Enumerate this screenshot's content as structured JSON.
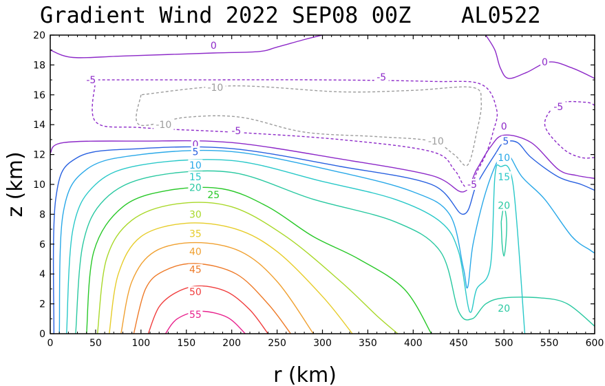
{
  "chart_data": {
    "type": "contour",
    "title": "Gradient Wind 2022 SEP08 00Z",
    "storm_id": "AL0522",
    "xlabel": "r (km)",
    "ylabel": "z (km)",
    "xlim": [
      0,
      600
    ],
    "ylim": [
      0,
      20
    ],
    "xticks": [
      "0",
      "50",
      "100",
      "150",
      "200",
      "250",
      "300",
      "350",
      "400",
      "450",
      "500",
      "550",
      "600"
    ],
    "yticks": [
      "0",
      "2",
      "4",
      "6",
      "8",
      "10",
      "12",
      "14",
      "16",
      "18",
      "20"
    ],
    "contour_interval": 5,
    "negative_style": "dashed",
    "contours": [
      {
        "level": 55,
        "color": "#e8208c",
        "dashed": false,
        "points": [
          [
            127,
            0
          ],
          [
            140,
            1.0
          ],
          [
            165,
            1.5
          ],
          [
            195,
            1.1
          ],
          [
            215,
            0
          ]
        ]
      },
      {
        "level": 50,
        "color": "#f03c3c",
        "dashed": false,
        "points": [
          [
            108,
            0
          ],
          [
            120,
            1.8
          ],
          [
            140,
            2.8
          ],
          [
            165,
            3.2
          ],
          [
            195,
            2.8
          ],
          [
            220,
            1.6
          ],
          [
            240,
            0
          ]
        ]
      },
      {
        "level": 45,
        "color": "#ee7a28",
        "dashed": false,
        "points": [
          [
            92,
            0
          ],
          [
            105,
            3.0
          ],
          [
            125,
            4.2
          ],
          [
            160,
            4.7
          ],
          [
            205,
            4.0
          ],
          [
            240,
            2.0
          ],
          [
            265,
            0
          ]
        ]
      },
      {
        "level": 40,
        "color": "#f0a030",
        "dashed": false,
        "points": [
          [
            78,
            0
          ],
          [
            90,
            3.5
          ],
          [
            115,
            5.5
          ],
          [
            160,
            6.1
          ],
          [
            210,
            5.5
          ],
          [
            250,
            3.5
          ],
          [
            290,
            0
          ]
        ]
      },
      {
        "level": 35,
        "color": "#e6cc28",
        "dashed": false,
        "points": [
          [
            65,
            0
          ],
          [
            75,
            4.0
          ],
          [
            100,
            6.5
          ],
          [
            150,
            7.4
          ],
          [
            205,
            7.0
          ],
          [
            250,
            5.5
          ],
          [
            300,
            2.5
          ],
          [
            333,
            0
          ]
        ]
      },
      {
        "level": 30,
        "color": "#a8d828",
        "dashed": false,
        "points": [
          [
            52,
            0
          ],
          [
            62,
            5.0
          ],
          [
            90,
            7.6
          ],
          [
            140,
            8.7
          ],
          [
            200,
            8.5
          ],
          [
            260,
            6.5
          ],
          [
            320,
            3.5
          ],
          [
            360,
            1.2
          ],
          [
            383,
            0
          ]
        ]
      },
      {
        "level": 25,
        "color": "#28c828",
        "dashed": false,
        "points": [
          [
            40,
            0
          ],
          [
            48,
            5.5
          ],
          [
            80,
            8.5
          ],
          [
            130,
            9.6
          ],
          [
            190,
            9.7
          ],
          [
            240,
            8.5
          ],
          [
            290,
            6.5
          ],
          [
            340,
            5.0
          ],
          [
            390,
            3.0
          ],
          [
            420,
            0
          ]
        ]
      },
      {
        "level": 20,
        "color": "#28c8a0",
        "dashed": false,
        "points": [
          [
            28,
            0
          ],
          [
            36,
            6.0
          ],
          [
            60,
            9.0
          ],
          [
            110,
            10.5
          ],
          [
            200,
            10.8
          ],
          [
            290,
            9.0
          ],
          [
            380,
            7.5
          ],
          [
            430,
            5.5
          ],
          [
            450,
            1.5
          ],
          [
            465,
            1.0
          ],
          [
            480,
            2.0
          ],
          [
            500,
            2.4
          ],
          [
            540,
            2.4
          ],
          [
            570,
            2.0
          ],
          [
            600,
            0.5
          ]
        ]
      },
      {
        "level": 20,
        "color": "#28c8a0",
        "dashed": false,
        "points": [
          [
            497,
            7.5
          ],
          [
            500,
            8.5
          ],
          [
            503,
            7.5
          ],
          [
            502,
            6.0
          ],
          [
            500,
            5.2
          ],
          [
            498,
            6.0
          ],
          [
            497,
            7.5
          ]
        ]
      },
      {
        "level": 15,
        "color": "#28c8c8",
        "dashed": false,
        "points": [
          [
            18,
            0
          ],
          [
            25,
            7.0
          ],
          [
            50,
            10.0
          ],
          [
            100,
            11.3
          ],
          [
            200,
            11.6
          ],
          [
            300,
            10.2
          ],
          [
            380,
            9.0
          ],
          [
            430,
            7.5
          ],
          [
            450,
            5.5
          ],
          [
            462,
            1.5
          ],
          [
            470,
            3.0
          ],
          [
            485,
            4.5
          ],
          [
            490,
            10.5
          ],
          [
            496,
            11.2
          ],
          [
            510,
            10.0
          ],
          [
            523,
            0
          ]
        ]
      },
      {
        "level": 10,
        "color": "#28a8e8",
        "dashed": false,
        "points": [
          [
            10,
            0
          ],
          [
            14,
            8.0
          ],
          [
            40,
            11.0
          ],
          [
            100,
            12.0
          ],
          [
            200,
            12.2
          ],
          [
            320,
            10.8
          ],
          [
            400,
            9.5
          ],
          [
            440,
            8.0
          ],
          [
            455,
            4.5
          ],
          [
            460,
            3.1
          ],
          [
            466,
            6.0
          ],
          [
            480,
            9.5
          ],
          [
            495,
            11.8
          ],
          [
            505,
            12.0
          ],
          [
            520,
            10.5
          ],
          [
            545,
            9.0
          ],
          [
            575,
            6.5
          ],
          [
            595,
            5.6
          ],
          [
            600,
            5.4
          ]
        ]
      },
      {
        "level": 5,
        "color": "#2860e0",
        "dashed": false,
        "points": [
          [
            4,
            0
          ],
          [
            6,
            9.0
          ],
          [
            30,
            11.8
          ],
          [
            100,
            12.4
          ],
          [
            200,
            12.4
          ],
          [
            320,
            11.2
          ],
          [
            420,
            10.0
          ],
          [
            455,
            8.0
          ],
          [
            470,
            10.0
          ],
          [
            490,
            12.0
          ],
          [
            500,
            12.8
          ],
          [
            515,
            12.8
          ],
          [
            530,
            11.8
          ],
          [
            560,
            10.5
          ],
          [
            585,
            10.0
          ],
          [
            600,
            9.6
          ]
        ]
      },
      {
        "level": 0,
        "color": "#8c28c8",
        "dashed": false,
        "points": [
          [
            0,
            12.1
          ],
          [
            15,
            12.8
          ],
          [
            100,
            12.9
          ],
          [
            200,
            12.8
          ],
          [
            320,
            11.7
          ],
          [
            420,
            10.6
          ],
          [
            455,
            9.5
          ],
          [
            470,
            11.0
          ],
          [
            485,
            12.5
          ],
          [
            500,
            13.3
          ],
          [
            530,
            12.8
          ],
          [
            560,
            11.0
          ],
          [
            580,
            10.6
          ],
          [
            600,
            10.4
          ]
        ]
      },
      {
        "level": 0,
        "color": "#8c28c8",
        "dashed": false,
        "points": [
          [
            0,
            19.0
          ],
          [
            25,
            18.5
          ],
          [
            80,
            18.6
          ],
          [
            180,
            18.8
          ],
          [
            230,
            18.9
          ],
          [
            250,
            19.2
          ],
          [
            280,
            19.7
          ],
          [
            300,
            20.0
          ]
        ]
      },
      {
        "level": 0,
        "color": "#8c28c8",
        "dashed": false,
        "points": [
          [
            480,
            20.0
          ],
          [
            490,
            19.0
          ],
          [
            496,
            17.8
          ],
          [
            505,
            17.1
          ],
          [
            525,
            17.5
          ],
          [
            550,
            18.2
          ],
          [
            575,
            17.8
          ],
          [
            600,
            17.1
          ]
        ]
      },
      {
        "level": -5,
        "color": "#8c28c8",
        "dashed": true,
        "points": [
          [
            50,
            17.0
          ],
          [
            50,
            14.2
          ],
          [
            100,
            13.8
          ],
          [
            200,
            13.5
          ],
          [
            320,
            13.0
          ],
          [
            420,
            12.2
          ],
          [
            445,
            11.0
          ],
          [
            455,
            10.0
          ],
          [
            463,
            9.7
          ],
          [
            470,
            10.8
          ],
          [
            480,
            12.0
          ],
          [
            488,
            13.5
          ],
          [
            492,
            15.0
          ],
          [
            475,
            16.7
          ],
          [
            420,
            16.9
          ],
          [
            300,
            17.0
          ],
          [
            140,
            17.0
          ],
          [
            50,
            17.0
          ]
        ]
      },
      {
        "level": -5,
        "color": "#8c28c8",
        "dashed": true,
        "points": [
          [
            600,
            11.8
          ],
          [
            585,
            11.8
          ],
          [
            565,
            12.4
          ],
          [
            545,
            14.0
          ],
          [
            560,
            15.4
          ],
          [
            590,
            15.5
          ],
          [
            600,
            15.3
          ]
        ]
      },
      {
        "level": -10,
        "color": "#9c9c9c",
        "dashed": true,
        "points": [
          [
            100,
            16.0
          ],
          [
            98,
            14.0
          ],
          [
            150,
            14.5
          ],
          [
            210,
            14.5
          ],
          [
            280,
            13.5
          ],
          [
            360,
            13.2
          ],
          [
            420,
            12.9
          ],
          [
            445,
            12.0
          ],
          [
            460,
            11.3
          ],
          [
            470,
            13.5
          ],
          [
            475,
            15.5
          ],
          [
            465,
            16.5
          ],
          [
            400,
            16.3
          ],
          [
            320,
            16.2
          ],
          [
            200,
            16.6
          ],
          [
            100,
            16.0
          ]
        ]
      }
    ],
    "contour_labels": [
      {
        "text": "0",
        "x": 180,
        "y": 19.3,
        "color": "#8c28c8"
      },
      {
        "text": "-5",
        "x": 45,
        "y": 17.0,
        "color": "#8c28c8"
      },
      {
        "text": "-5",
        "x": 365,
        "y": 17.2,
        "color": "#8c28c8"
      },
      {
        "text": "-10",
        "x": 182,
        "y": 16.5,
        "color": "#9c9c9c"
      },
      {
        "text": "-10",
        "x": 125,
        "y": 14.0,
        "color": "#9c9c9c"
      },
      {
        "text": "-5",
        "x": 205,
        "y": 13.6,
        "color": "#8c28c8"
      },
      {
        "text": "-10",
        "x": 425,
        "y": 12.9,
        "color": "#9c9c9c"
      },
      {
        "text": "0",
        "x": 160,
        "y": 12.7,
        "color": "#8c28c8"
      },
      {
        "text": "5",
        "x": 160,
        "y": 12.2,
        "color": "#2860e0"
      },
      {
        "text": "10",
        "x": 160,
        "y": 11.3,
        "color": "#28a8e8"
      },
      {
        "text": "15",
        "x": 160,
        "y": 10.5,
        "color": "#28c8c8"
      },
      {
        "text": "20",
        "x": 160,
        "y": 9.8,
        "color": "#28c8a0"
      },
      {
        "text": "25",
        "x": 180,
        "y": 9.3,
        "color": "#28c828"
      },
      {
        "text": "30",
        "x": 160,
        "y": 8.0,
        "color": "#a8d828"
      },
      {
        "text": "35",
        "x": 160,
        "y": 6.7,
        "color": "#e6cc28"
      },
      {
        "text": "40",
        "x": 160,
        "y": 5.5,
        "color": "#f0a030"
      },
      {
        "text": "45",
        "x": 160,
        "y": 4.3,
        "color": "#ee7a28"
      },
      {
        "text": "50",
        "x": 160,
        "y": 2.8,
        "color": "#f03c3c"
      },
      {
        "text": "55",
        "x": 160,
        "y": 1.3,
        "color": "#e8208c"
      },
      {
        "text": "-5",
        "x": 465,
        "y": 10.0,
        "color": "#8c28c8"
      },
      {
        "text": "0",
        "x": 500,
        "y": 13.9,
        "color": "#8c28c8"
      },
      {
        "text": "5",
        "x": 502,
        "y": 12.9,
        "color": "#2860e0"
      },
      {
        "text": "10",
        "x": 500,
        "y": 11.8,
        "color": "#28a8e8"
      },
      {
        "text": "15",
        "x": 500,
        "y": 10.5,
        "color": "#28c8c8"
      },
      {
        "text": "20",
        "x": 500,
        "y": 8.6,
        "color": "#28c8a0"
      },
      {
        "text": "20",
        "x": 500,
        "y": 1.7,
        "color": "#28c8a0"
      },
      {
        "text": "0",
        "x": 545,
        "y": 18.2,
        "color": "#8c28c8"
      },
      {
        "text": "-5",
        "x": 560,
        "y": 15.2,
        "color": "#8c28c8"
      }
    ]
  }
}
